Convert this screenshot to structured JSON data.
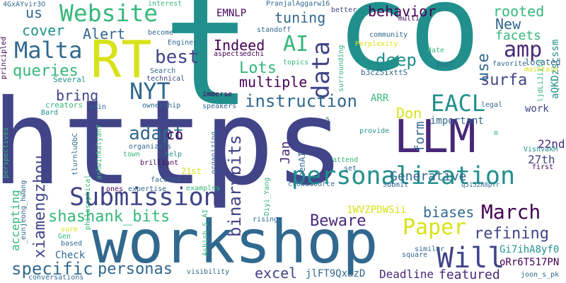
{
  "palette": {
    "navy": "#414487",
    "purple": "#482878",
    "blue": "#31688e",
    "teal": "#21908d",
    "green": "#35b779",
    "lime": "#90d743",
    "yellow": "#d8e219",
    "dark": "#440154"
  },
  "words": [
    "https",
    "t",
    "co",
    "workshop",
    "RT",
    "LLM",
    "personalization",
    "Submission",
    "Website",
    "Malta",
    "Paper",
    "AI",
    "amp",
    "NYT",
    "data",
    "EACL",
    "March",
    "Will",
    "adapt",
    "best",
    "Indeed",
    "instruction",
    "shashank_bits",
    "binarybits",
    "personas",
    "specific",
    "queries",
    "deep",
    "surfa",
    "refining",
    "biases",
    "rooted",
    "behavior",
    "tuning",
    "Alert",
    "cover",
    "bring",
    "Lots",
    "multiple",
    "Beware",
    "xiamengzhou",
    "Jan",
    "Generative",
    "form",
    "use",
    "New",
    "facets",
    "excel",
    "Deadline",
    "featured",
    "27th",
    "22nd",
    "work",
    "co",
    "Don",
    "us",
    "EMNLP",
    "ARR",
    "important",
    "Check",
    "accepting",
    "jlFT9QxazD",
    "1WVZPDWSii",
    "Gi7ihA8yf0",
    "oRr6T517PN",
    "aQKDzscssm",
    "ljdLiJiIl8",
    "b3cZ5ixttS",
    "4GxAYvir3O",
    "PranjalAggarw16",
    "Perplexity",
    "community",
    "standoff",
    "located",
    "favorite",
    "maintain",
    "date",
    "post",
    "21st",
    "first",
    "legal",
    "VishvakM",
    "Search",
    "technical",
    "Several",
    "principled",
    "creators",
    "vein",
    "Bard",
    "ownership",
    "immerse",
    "speakers",
    "surrounding",
    "topics",
    "edchi",
    "aspects",
    "Engines",
    "become",
    "interest",
    "better",
    "multi",
    "organizers",
    "town",
    "help",
    "brilliant",
    "Karthik_r_n",
    "ashwinkalyan7",
    "philosophical",
    "faceted",
    "examples",
    "expertise",
    "ones",
    "organizing",
    "perspectives",
    "tlurnluQbC",
    "Diyi_Yang",
    "OpenAI",
    "crowdsource",
    "attend",
    "set",
    "provide",
    "Submit",
    "q5152A8pTr",
    "rising",
    "Ashish_S_AI",
    "Gen",
    "based",
    "sure",
    "_eunjeong_hwang",
    "conversations",
    "visibility",
    "square",
    "similar",
    "joon_s_pk",
    "m",
    "s"
  ]
}
